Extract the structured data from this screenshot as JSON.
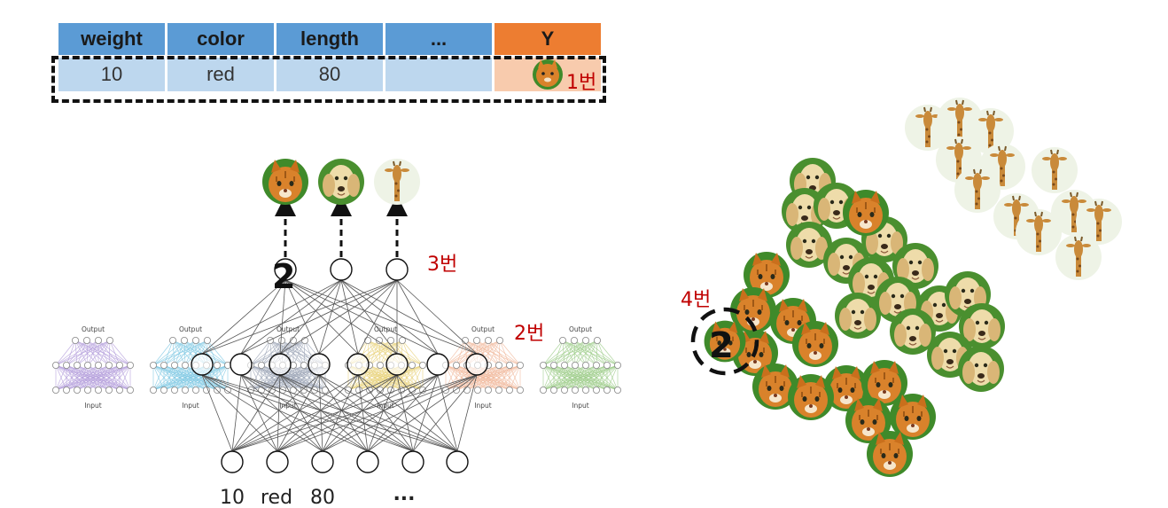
{
  "table": {
    "headers": [
      "weight",
      "color",
      "length",
      "...",
      "Y"
    ],
    "row": [
      "10",
      "red",
      "80",
      "",
      ""
    ]
  },
  "callouts": {
    "one": "1번",
    "two": "2번",
    "three": "3번",
    "four": "4번"
  },
  "network": {
    "output_marker": "2",
    "input_labels": [
      "10",
      "red",
      "80",
      "..."
    ],
    "mini_net_top_label": "Output",
    "mini_net_bottom_label": "Input"
  },
  "cluster": {
    "highlight_marker": "2"
  },
  "colors": {
    "header_blue": "#5b9bd5",
    "header_orange": "#ed7d31",
    "cell_blue": "#bdd7ee",
    "cell_orange": "#f8cbad",
    "callout_red": "#c00000",
    "cat": "#d9822b",
    "dog": "#e8d3a0",
    "giraffe": "#c98a3a",
    "grass": "#3f8a2a",
    "mini_purple": "#b39ddb",
    "mini_blue": "#7ec8e3",
    "mini_gray": "#9aa3b5",
    "mini_yellow": "#e8d27a",
    "mini_peach": "#f1b89b",
    "mini_green": "#9ccc88"
  },
  "icons": [
    "cat-photo-icon",
    "dog-photo-icon",
    "giraffe-photo-icon"
  ]
}
